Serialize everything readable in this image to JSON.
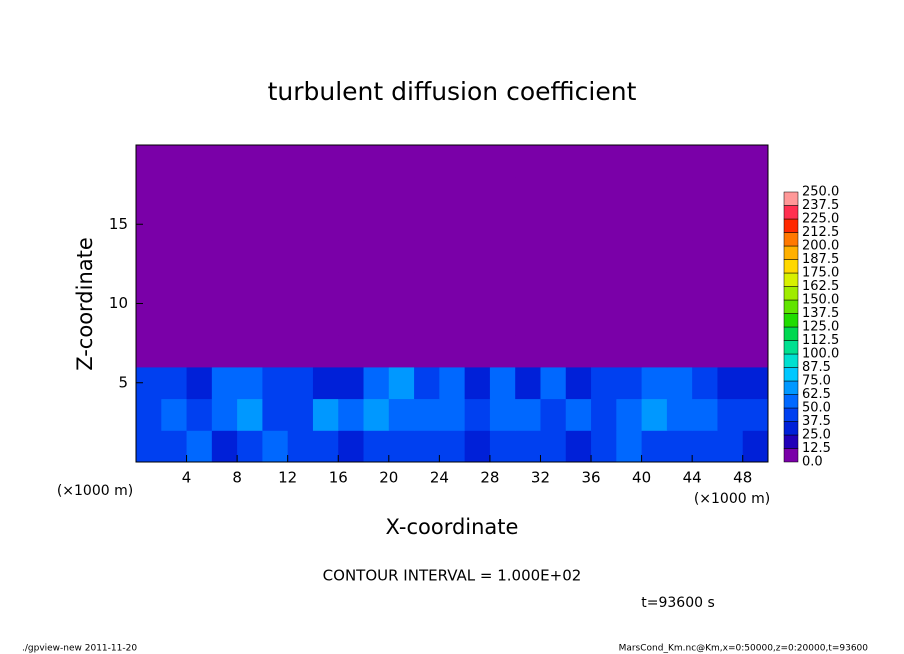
{
  "chart_data": {
    "type": "heatmap",
    "title": "turbulent diffusion coefficient",
    "xlabel": "X-coordinate",
    "ylabel": "Z-coordinate",
    "x_unit": "(×1000 m)",
    "y_unit": "(×1000 m)",
    "xlim": [
      0,
      50
    ],
    "ylim": [
      0,
      20
    ],
    "xticks": [
      4,
      8,
      12,
      16,
      20,
      24,
      28,
      32,
      36,
      40,
      44,
      48
    ],
    "yticks": [
      5,
      10,
      15
    ],
    "xbins": [
      0,
      2,
      4,
      6,
      8,
      10,
      12,
      14,
      16,
      18,
      20,
      22,
      24,
      26,
      28,
      30,
      32,
      34,
      36,
      38,
      40,
      42,
      44,
      46,
      48,
      50
    ],
    "zbins": [
      0,
      2,
      4,
      6,
      8,
      10,
      12,
      14,
      16,
      18,
      20
    ],
    "z": [
      [
        45,
        40,
        55,
        35,
        40,
        50,
        38,
        42,
        36,
        45,
        40,
        38,
        44,
        35,
        42,
        48,
        40,
        36,
        45,
        50,
        38,
        42,
        40,
        44,
        36
      ],
      [
        40,
        55,
        48,
        60,
        70,
        45,
        40,
        66,
        50,
        72,
        58,
        60,
        55,
        42,
        50,
        62,
        45,
        55,
        48,
        60,
        70,
        58,
        52,
        47,
        40
      ],
      [
        38,
        45,
        30,
        62,
        50,
        38,
        45,
        32,
        28,
        58,
        66,
        40,
        52,
        36,
        55,
        35,
        60,
        28,
        40,
        45,
        52,
        62,
        48,
        30,
        35
      ],
      [
        0,
        0,
        0,
        0,
        0,
        0,
        0,
        0,
        0,
        0,
        0,
        0,
        0,
        0,
        0,
        0,
        0,
        0,
        0,
        0,
        0,
        0,
        0,
        0,
        0
      ],
      [
        0,
        0,
        0,
        0,
        0,
        0,
        0,
        0,
        0,
        0,
        0,
        0,
        0,
        0,
        0,
        0,
        0,
        0,
        0,
        0,
        0,
        0,
        0,
        0,
        0
      ],
      [
        0,
        0,
        0,
        0,
        0,
        0,
        0,
        0,
        0,
        0,
        0,
        0,
        0,
        0,
        0,
        0,
        0,
        0,
        0,
        0,
        0,
        0,
        0,
        0,
        0
      ],
      [
        0,
        0,
        0,
        0,
        0,
        0,
        0,
        0,
        0,
        0,
        0,
        0,
        0,
        0,
        0,
        0,
        0,
        0,
        0,
        0,
        0,
        0,
        0,
        0,
        0
      ],
      [
        0,
        0,
        0,
        0,
        0,
        0,
        0,
        0,
        0,
        0,
        0,
        0,
        0,
        0,
        0,
        0,
        0,
        0,
        0,
        0,
        0,
        0,
        0,
        0,
        0
      ],
      [
        0,
        0,
        0,
        0,
        0,
        0,
        0,
        0,
        0,
        0,
        0,
        0,
        0,
        0,
        0,
        0,
        0,
        0,
        0,
        0,
        0,
        0,
        0,
        0,
        0
      ],
      [
        0,
        0,
        0,
        0,
        0,
        0,
        0,
        0,
        0,
        0,
        0,
        0,
        0,
        0,
        0,
        0,
        0,
        0,
        0,
        0,
        0,
        0,
        0,
        0,
        0
      ]
    ],
    "levels": [
      {
        "value": 0,
        "label": "0.0"
      },
      {
        "value": 12.5,
        "label": "12.5"
      },
      {
        "value": 25,
        "label": "25.0"
      },
      {
        "value": 37.5,
        "label": "37.5"
      },
      {
        "value": 50,
        "label": "50.0"
      },
      {
        "value": 62.5,
        "label": "62.5"
      },
      {
        "value": 75,
        "label": "75.0"
      },
      {
        "value": 87.5,
        "label": "87.5"
      },
      {
        "value": 100,
        "label": "100.0"
      },
      {
        "value": 112.5,
        "label": "112.5"
      },
      {
        "value": 125,
        "label": "125.0"
      },
      {
        "value": 137.5,
        "label": "137.5"
      },
      {
        "value": 150,
        "label": "150.0"
      },
      {
        "value": 162.5,
        "label": "162.5"
      },
      {
        "value": 175,
        "label": "175.0"
      },
      {
        "value": 187.5,
        "label": "187.5"
      },
      {
        "value": 200,
        "label": "200.0"
      },
      {
        "value": 212.5,
        "label": "212.5"
      },
      {
        "value": 225,
        "label": "225.0"
      },
      {
        "value": 237.5,
        "label": "237.5"
      },
      {
        "value": 250,
        "label": "250.0"
      }
    ],
    "colors": [
      "#7a00a8",
      "#2200b8",
      "#0020d8",
      "#0040f0",
      "#0068ff",
      "#0098ff",
      "#00c8ff",
      "#00e0d0",
      "#00e090",
      "#00d850",
      "#20dc00",
      "#60e400",
      "#a0ec00",
      "#d8f000",
      "#ffd800",
      "#ffb000",
      "#ff7800",
      "#ff2800",
      "#ff3050",
      "#ff9898"
    ],
    "contour_note": "CONTOUR INTERVAL = 1.000E+02",
    "time_label": "t=93600 s",
    "footer_left": "./gpview-new  2011-11-20",
    "footer_right": "MarsCond_Km.nc@Km,x=0:50000,z=0:20000,t=93600"
  }
}
